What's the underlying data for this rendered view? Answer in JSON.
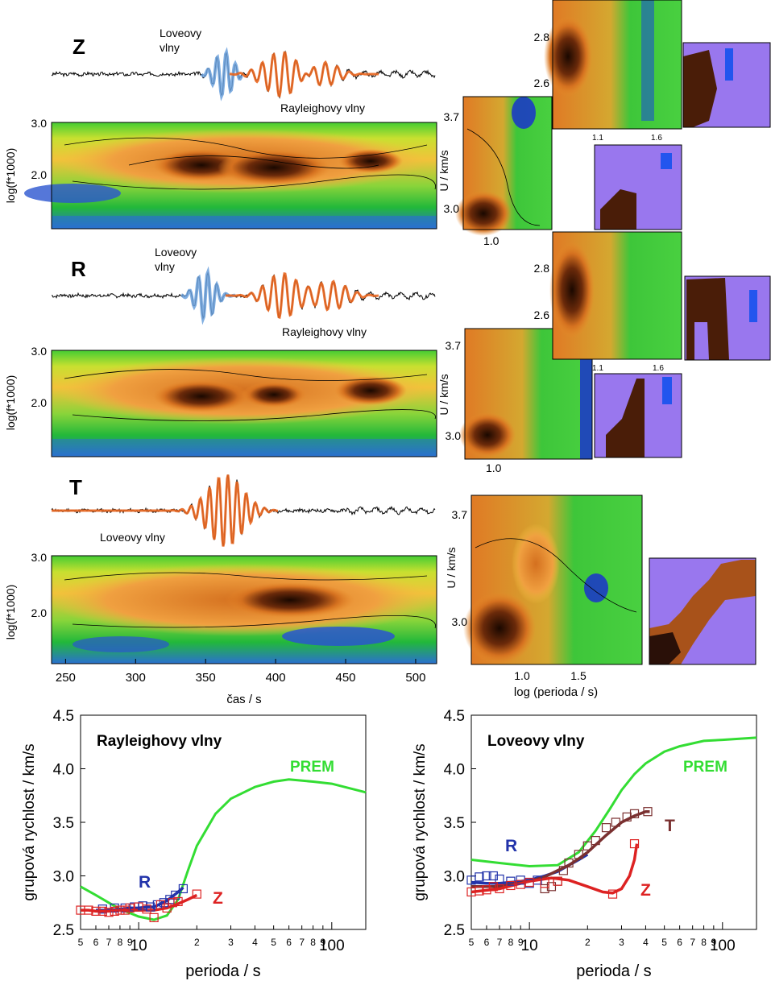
{
  "colors": {
    "love": "#6aa0dc",
    "rayleigh": "#e8651e",
    "prem": "#33dd33",
    "R": "#2233aa",
    "Z": "#dd2222",
    "T": "#7a3030",
    "heat_hot": "#1a0800",
    "heat_mid": "#e98a2a",
    "heat_cool": "#22bb33",
    "heat_cold": "#1a33cc",
    "mask": "#9977ee"
  },
  "panels": {
    "Z": {
      "component": "Z",
      "love_label": "Loveovy\nvlny",
      "rayleigh_label": "Rayleighovy vlny"
    },
    "R": {
      "component": "R",
      "love_label": "Loveovy\nvlny",
      "rayleigh_label": "Rayleighovy vlny"
    },
    "T": {
      "component": "T",
      "love_label": "Loveovy vlny"
    }
  },
  "spectrogram": {
    "ylabel": "log(f*1000)",
    "yticks": [
      "3.0",
      "2.0"
    ],
    "xlabel": "čas / s",
    "xticks": [
      "250",
      "300",
      "350",
      "400",
      "450",
      "500"
    ]
  },
  "ftan": {
    "ylabel": "U / km/s",
    "yticks_main": [
      "3.7",
      "3.0"
    ],
    "xtick_main": "1.0",
    "yticks_zoom": [
      "2.8",
      "2.6"
    ],
    "xticks_zoom": [
      "1.1",
      "1.6"
    ],
    "xlabel": "log (perioda / s)",
    "xticks_T": [
      "1.0",
      "1.5"
    ]
  },
  "chart_data": [
    {
      "type": "line",
      "title": "Rayleighovy vlny",
      "xlabel": "perioda / s",
      "ylabel": "grupová rychlost / km/s",
      "xscale": "log",
      "xlim": [
        5,
        150
      ],
      "ylim": [
        2.5,
        4.5
      ],
      "yticks": [
        "2.5",
        "3.0",
        "3.5",
        "4.0",
        "4.5"
      ],
      "xtick_labels": [
        "5",
        "6",
        "7",
        "8",
        "9",
        "10",
        "2",
        "3",
        "4",
        "5",
        "6",
        "7",
        "8",
        "9",
        "100"
      ],
      "series": [
        {
          "name": "PREM",
          "x": [
            5,
            6,
            7,
            8,
            10,
            12,
            14,
            16,
            18,
            20,
            25,
            30,
            40,
            50,
            60,
            80,
            100,
            150
          ],
          "y": [
            2.9,
            2.82,
            2.75,
            2.69,
            2.62,
            2.59,
            2.63,
            2.78,
            3.05,
            3.28,
            3.58,
            3.72,
            3.83,
            3.88,
            3.9,
            3.88,
            3.86,
            3.78
          ]
        },
        {
          "name": "R",
          "x": [
            6,
            7,
            8,
            9,
            10,
            11,
            12,
            13,
            14,
            15,
            16,
            17
          ],
          "y": [
            2.68,
            2.68,
            2.69,
            2.7,
            2.7,
            2.71,
            2.71,
            2.74,
            2.77,
            2.81,
            2.85,
            2.89
          ]
        },
        {
          "name": "Z",
          "x": [
            5,
            5.5,
            6,
            7,
            8,
            9,
            10,
            11,
            12,
            13,
            14,
            15,
            16,
            17,
            18,
            20
          ],
          "y": [
            2.68,
            2.68,
            2.67,
            2.67,
            2.68,
            2.68,
            2.68,
            2.68,
            2.68,
            2.69,
            2.7,
            2.72,
            2.74,
            2.76,
            2.78,
            2.82
          ]
        }
      ],
      "markers": [
        {
          "series": "R",
          "x": [
            6.5,
            7.5,
            8.5,
            9.5,
            10.5,
            11.5,
            12.5,
            13.5,
            14.5,
            15.5,
            17
          ],
          "y": [
            2.69,
            2.7,
            2.7,
            2.71,
            2.72,
            2.71,
            2.73,
            2.75,
            2.78,
            2.82,
            2.88
          ]
        },
        {
          "series": "Z",
          "x": [
            5,
            5.5,
            6,
            6.5,
            7,
            7.5,
            8,
            8.5,
            9,
            10,
            11,
            12,
            13,
            14,
            15,
            16,
            20
          ],
          "y": [
            2.68,
            2.68,
            2.67,
            2.67,
            2.66,
            2.67,
            2.68,
            2.68,
            2.7,
            2.71,
            2.69,
            2.61,
            2.73,
            2.7,
            2.75,
            2.76,
            2.83
          ]
        }
      ]
    },
    {
      "type": "line",
      "title": "Loveovy vlny",
      "xlabel": "perioda / s",
      "ylabel": "grupová rychlost / km/s",
      "xscale": "log",
      "xlim": [
        5,
        150
      ],
      "ylim": [
        2.5,
        4.5
      ],
      "yticks": [
        "2.5",
        "3.0",
        "3.5",
        "4.0",
        "4.5"
      ],
      "xtick_labels": [
        "5",
        "6",
        "7",
        "8",
        "9",
        "10",
        "2",
        "3",
        "4",
        "5",
        "6",
        "7",
        "8",
        "9",
        "100"
      ],
      "series": [
        {
          "name": "PREM",
          "x": [
            5,
            7,
            10,
            14,
            18,
            22,
            26,
            30,
            35,
            40,
            50,
            60,
            80,
            100,
            150
          ],
          "y": [
            3.15,
            3.12,
            3.09,
            3.1,
            3.22,
            3.42,
            3.62,
            3.8,
            3.95,
            4.05,
            4.16,
            4.21,
            4.26,
            4.27,
            4.29
          ]
        },
        {
          "name": "R",
          "x": [
            5,
            6,
            7,
            8,
            9,
            10,
            12,
            14,
            16,
            18,
            20
          ],
          "y": [
            2.94,
            2.93,
            2.93,
            2.94,
            2.95,
            2.96,
            3.0,
            3.04,
            3.1,
            3.15,
            3.2
          ]
        },
        {
          "name": "T",
          "x": [
            5,
            7,
            10,
            12,
            14,
            16,
            18,
            20,
            25,
            30,
            35,
            40,
            42
          ],
          "y": [
            2.9,
            2.9,
            2.95,
            2.99,
            3.05,
            3.1,
            3.16,
            3.22,
            3.38,
            3.5,
            3.56,
            3.6,
            3.6
          ]
        },
        {
          "name": "Z",
          "x": [
            5,
            7,
            10,
            13,
            16,
            20,
            24,
            27,
            30,
            33,
            35,
            36
          ],
          "y": [
            2.85,
            2.88,
            2.95,
            2.98,
            2.96,
            2.9,
            2.85,
            2.84,
            2.88,
            3.0,
            3.15,
            3.3
          ]
        }
      ],
      "markers": [
        {
          "series": "T",
          "x": [
            12,
            13,
            14,
            15,
            16,
            18,
            20,
            22,
            25,
            28,
            32,
            35,
            41
          ],
          "y": [
            2.88,
            2.9,
            2.95,
            3.05,
            3.12,
            3.2,
            3.28,
            3.33,
            3.45,
            3.5,
            3.55,
            3.58,
            3.6
          ]
        },
        {
          "series": "R",
          "x": [
            5,
            5.5,
            6,
            6.5,
            7,
            8,
            9,
            10,
            11
          ],
          "y": [
            2.96,
            2.99,
            3.0,
            3.0,
            2.97,
            2.95,
            2.96,
            2.93,
            2.96
          ]
        },
        {
          "series": "Z",
          "x": [
            5,
            5.5,
            6,
            6.5,
            7,
            8,
            9,
            10,
            12,
            14,
            27,
            35
          ],
          "y": [
            2.85,
            2.86,
            2.87,
            2.9,
            2.88,
            2.91,
            2.92,
            2.94,
            2.93,
            2.95,
            2.83,
            3.3
          ]
        }
      ],
      "series_labels": [
        "R",
        "T",
        "Z",
        "PREM"
      ]
    }
  ]
}
